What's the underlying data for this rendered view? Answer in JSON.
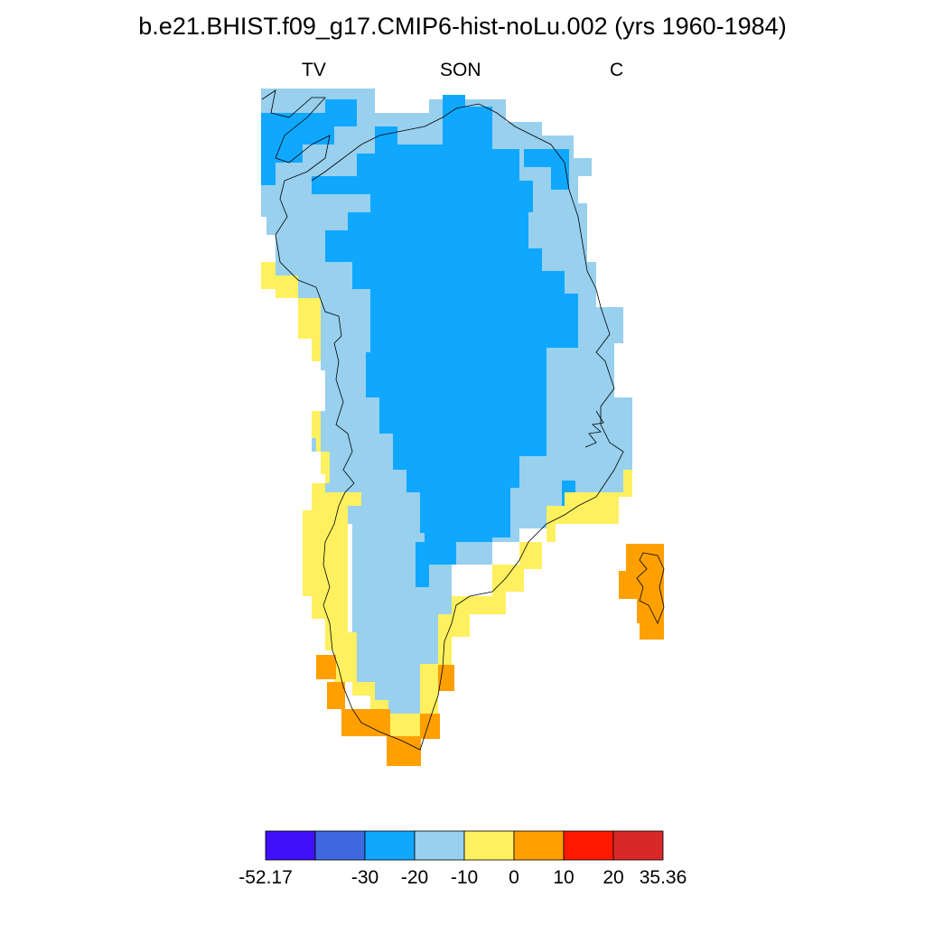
{
  "title": "b.e21.BHIST.f09_g17.CMIP6-hist-noLu.002 (yrs 1960-1984)",
  "subtitles": {
    "left": "TV",
    "center": "SON",
    "right": "C"
  },
  "colors": {
    "bin_0": "#4010f8",
    "bin_1": "#4068e0",
    "bin_2": "#10a8ff",
    "bin_3": "#98d0ee",
    "bin_4": "#fff060",
    "bin_5": "#ffa000",
    "bin_6": "#ff1800",
    "bin_7": "#d82828"
  },
  "colorbar": {
    "colors": [
      "#4010f8",
      "#4068e0",
      "#10a8ff",
      "#98d0ee",
      "#fff060",
      "#ffa000",
      "#ff1800",
      "#d82828"
    ],
    "labels": [
      "-52.17",
      "",
      "-30",
      "-20",
      "-10",
      "0",
      "10",
      "20",
      "35.36"
    ]
  }
}
